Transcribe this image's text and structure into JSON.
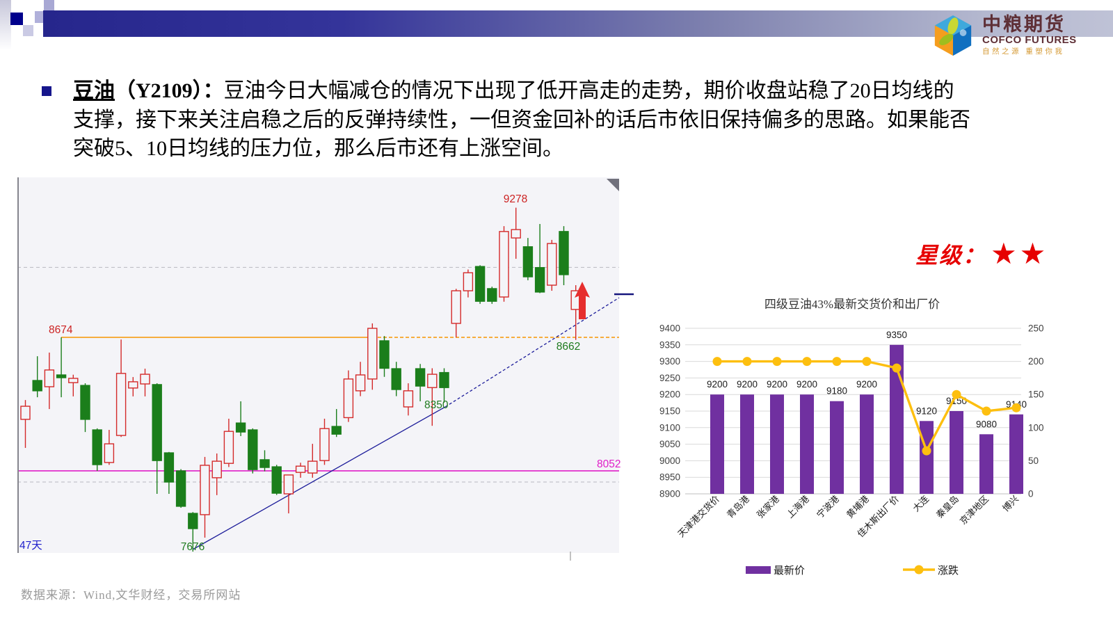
{
  "logo": {
    "name_cn": "中粮期货",
    "name_en": "COFCO FUTURES",
    "tagline": "自然之源  重塑你我"
  },
  "commentary": {
    "lead_term": "豆油",
    "lead_rest": "（Y2109）：",
    "line1": "豆油今日大幅减仓的情况下出现了低开高走的走势，期价收盘站稳了20日均线的",
    "line2": "支撑，接下来关注启稳之后的反弹持续性，一但资金回补的话后市依旧保持偏多的思路。如果能否",
    "line3": "突破5、10日均线的压力位，那么后市还有上涨空间。"
  },
  "rating": {
    "label": "星级：",
    "stars": "★★"
  },
  "footer": {
    "source": "数据来源：Wind,文华财经，交易所网站"
  },
  "chart_data": [
    {
      "type": "candlestick",
      "instrument": "豆油 Y2109 日线",
      "period_label": "47天",
      "price_axis_range": [
        7670,
        9420
      ],
      "gridlines": [
        9000,
        8000
      ],
      "levels": {
        "resistance": 8674,
        "support": 8052
      },
      "annotations": {
        "high": "9278",
        "pullback_low": "8662",
        "trendline_point": "8350",
        "low": "7676",
        "days": "47天",
        "resistance": "8674",
        "support": "8052"
      },
      "colors": {
        "up": "#d42a2a",
        "down": "#1b7e1b",
        "resistance_line": "#f79500",
        "support_line": "#e01ec8",
        "trend_line": "#1c1c9a",
        "background": "#f4f4f8"
      },
      "candles_ohlc": [
        [
          8292,
          8382,
          8159,
          8353
        ],
        [
          8473,
          8586,
          8395,
          8425
        ],
        [
          8444,
          8603,
          8340,
          8522
        ],
        [
          8499,
          8674,
          8395,
          8486
        ],
        [
          8463,
          8500,
          8399,
          8483
        ],
        [
          8450,
          8460,
          8233,
          8292
        ],
        [
          8243,
          8250,
          8052,
          8081
        ],
        [
          8091,
          8243,
          8080,
          8178
        ],
        [
          8217,
          8664,
          8210,
          8506
        ],
        [
          8438,
          8489,
          8399,
          8467
        ],
        [
          8457,
          8528,
          8399,
          8502
        ],
        [
          8454,
          8460,
          7945,
          8100
        ],
        [
          8136,
          8140,
          7945,
          8000
        ],
        [
          8052,
          8060,
          7880,
          7887
        ],
        [
          7854,
          7860,
          7676,
          7783
        ],
        [
          7848,
          8117,
          7741,
          8078
        ],
        [
          8020,
          8133,
          7939,
          8097
        ],
        [
          8087,
          8295,
          8070,
          8236
        ],
        [
          8275,
          8376,
          8214,
          8233
        ],
        [
          8243,
          8250,
          8040,
          8058
        ],
        [
          8104,
          8148,
          8050,
          8068
        ],
        [
          8071,
          8080,
          7940,
          7948
        ],
        [
          7945,
          8000,
          7854,
          8033
        ],
        [
          8045,
          8090,
          8020,
          8074
        ],
        [
          8042,
          8178,
          8020,
          8097
        ],
        [
          8100,
          8295,
          8080,
          8249
        ],
        [
          8259,
          8340,
          8210,
          8223
        ],
        [
          8300,
          8520,
          8280,
          8480
        ],
        [
          8425,
          8560,
          8400,
          8499
        ],
        [
          8480,
          8739,
          8430,
          8716
        ],
        [
          8658,
          8680,
          8490,
          8530
        ],
        [
          8528,
          8560,
          8400,
          8431
        ],
        [
          8350,
          8460,
          8310,
          8425
        ],
        [
          8528,
          8550,
          8376,
          8447
        ],
        [
          8440,
          8530,
          8262,
          8502
        ],
        [
          8510,
          8530,
          8370,
          8440
        ],
        [
          8739,
          8900,
          8674,
          8891
        ],
        [
          8891,
          8990,
          8860,
          8975
        ],
        [
          9004,
          9010,
          8830,
          8842
        ],
        [
          8901,
          8910,
          8830,
          8842
        ],
        [
          8862,
          9192,
          8840,
          9167
        ],
        [
          9137,
          9278,
          9040,
          9176
        ],
        [
          9096,
          9137,
          8940,
          8956
        ],
        [
          8999,
          9202,
          8880,
          8885
        ],
        [
          8917,
          9128,
          8891,
          9111
        ],
        [
          9167,
          9192,
          8917,
          8966
        ],
        [
          8804,
          8917,
          8662,
          8891
        ]
      ]
    },
    {
      "type": "bar-line",
      "title": "四级豆油43%最新交货价和出厂价",
      "categories": [
        "天津港交货价",
        "青岛港",
        "张家港",
        "上海港",
        "宁波港",
        "黄埔港",
        "佳木斯出厂价",
        "大连",
        "秦皇岛",
        "京津地区",
        "博兴"
      ],
      "series": [
        {
          "name": "最新价",
          "type": "bar",
          "axis": "left",
          "color": "#7030a0",
          "values": [
            9200,
            9200,
            9200,
            9200,
            9180,
            9200,
            9350,
            9120,
            9150,
            9080,
            9140
          ]
        },
        {
          "name": "涨跌",
          "type": "line",
          "axis": "right",
          "color": "#fdbf0f",
          "values": [
            200,
            200,
            200,
            200,
            200,
            200,
            190,
            65,
            150,
            125,
            130
          ]
        }
      ],
      "left_axis": {
        "min": 8900,
        "max": 9400,
        "step": 50,
        "ticks": [
          9400,
          9350,
          9300,
          9250,
          9200,
          9150,
          9100,
          9050,
          9000,
          8950,
          8900
        ]
      },
      "right_axis": {
        "min": 0,
        "max": 250,
        "step": 50,
        "ticks": [
          250,
          200,
          150,
          100,
          50,
          0
        ]
      },
      "grid": true,
      "legend_position": "bottom"
    }
  ]
}
